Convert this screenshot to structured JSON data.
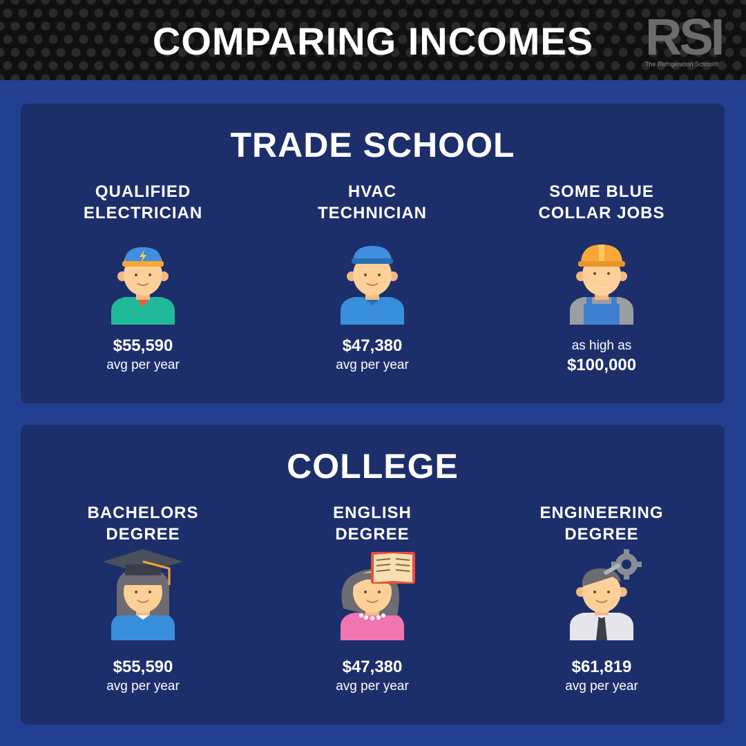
{
  "header": {
    "title": "COMPARING INCOMES",
    "logo_text": "RSI",
    "logo_tagline": "The Refrigeration School®"
  },
  "trade_school": {
    "title": "TRADE SCHOOL",
    "jobs": [
      {
        "line1": "QUALIFIED",
        "line2": "ELECTRICIAN",
        "amount": "$55,590",
        "subtitle": "avg per year",
        "icon": "electrician-icon"
      },
      {
        "line1": "HVAC",
        "line2": "TECHNICIAN",
        "amount": "$47,380",
        "subtitle": "avg per year",
        "icon": "hvac-technician-icon"
      },
      {
        "line1": "SOME BLUE",
        "line2": "COLLAR JOBS",
        "amount": "$100,000",
        "subtitle": "as high as",
        "icon": "construction-worker-icon"
      }
    ]
  },
  "college": {
    "title": "COLLEGE",
    "jobs": [
      {
        "line1": "BACHELORS",
        "line2": "DEGREE",
        "amount": "$55,590",
        "subtitle": "avg per year",
        "icon": "graduate-icon"
      },
      {
        "line1": "ENGLISH",
        "line2": "DEGREE",
        "amount": "$47,380",
        "subtitle": "avg per year",
        "icon": "reader-icon"
      },
      {
        "line1": "ENGINEERING",
        "line2": "DEGREE",
        "amount": "$61,819",
        "subtitle": "avg per year",
        "icon": "engineer-icon"
      }
    ]
  },
  "colors": {
    "background": "#233f8f",
    "panel": "#1d2f6b",
    "header": "#101010",
    "text": "#ffffff",
    "skin": "#fdd09a",
    "orange": "#f7a737"
  }
}
